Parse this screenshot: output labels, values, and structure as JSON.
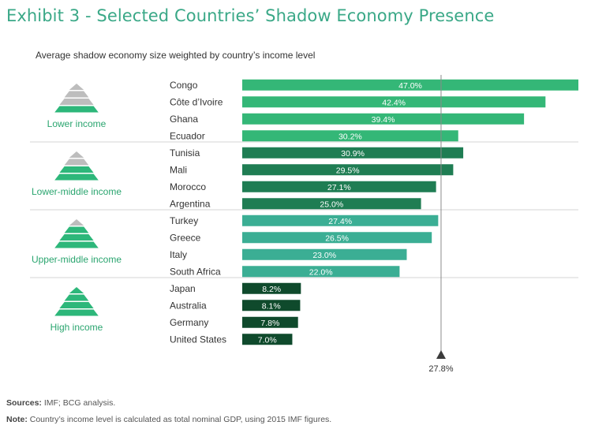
{
  "title": "Exhibit 3 - Selected Countries’ Shadow Economy Presence",
  "subtitle": "Average shadow economy size weighted by country’s income level",
  "colors": {
    "title": "#3aa887",
    "pyramid_on": "#2db77a",
    "pyramid_off": "#bdbdbd",
    "income_label": "#2aa56f"
  },
  "chart_data": {
    "type": "bar",
    "orientation": "horizontal",
    "groups": [
      {
        "name": "Lower income",
        "color": "#34b777",
        "items": [
          {
            "country": "Congo",
            "value": 47.0,
            "label": "47.0%"
          },
          {
            "country": "Côte d’Ivoire",
            "value": 42.4,
            "label": "42.4%"
          },
          {
            "country": "Ghana",
            "value": 39.4,
            "label": "39.4%"
          },
          {
            "country": "Ecuador",
            "value": 30.2,
            "label": "30.2%"
          }
        ]
      },
      {
        "name": "Lower-middle income",
        "color": "#1f7d53",
        "items": [
          {
            "country": "Tunisia",
            "value": 30.9,
            "label": "30.9%"
          },
          {
            "country": "Mali",
            "value": 29.5,
            "label": "29.5%"
          },
          {
            "country": "Morocco",
            "value": 27.1,
            "label": "27.1%"
          },
          {
            "country": "Argentina",
            "value": 25.0,
            "label": "25.0%"
          }
        ]
      },
      {
        "name": "Upper-middle income",
        "color": "#3bae94",
        "items": [
          {
            "country": "Turkey",
            "value": 27.4,
            "label": "27.4%"
          },
          {
            "country": "Greece",
            "value": 26.5,
            "label": "26.5%"
          },
          {
            "country": "Italy",
            "value": 23.0,
            "label": "23.0%"
          },
          {
            "country": "South Africa",
            "value": 22.0,
            "label": "22.0%"
          }
        ]
      },
      {
        "name": "High income",
        "color": "#0f4a2c",
        "items": [
          {
            "country": "Japan",
            "value": 8.2,
            "label": "8.2%"
          },
          {
            "country": "Australia",
            "value": 8.1,
            "label": "8.1%"
          },
          {
            "country": "Germany",
            "value": 7.8,
            "label": "7.8%"
          },
          {
            "country": "United States",
            "value": 7.0,
            "label": "7.0%"
          }
        ]
      }
    ],
    "reference_line": {
      "value": 27.8,
      "label": "27.8%"
    },
    "xlim": [
      0,
      47.0
    ],
    "grid": false
  },
  "footer": {
    "sources_label": "Sources:",
    "sources_text": " IMF; BCG analysis.",
    "note_label": "Note:",
    "note_text": " Country’s income level is calculated as total nominal GDP, using 2015 IMF figures."
  }
}
